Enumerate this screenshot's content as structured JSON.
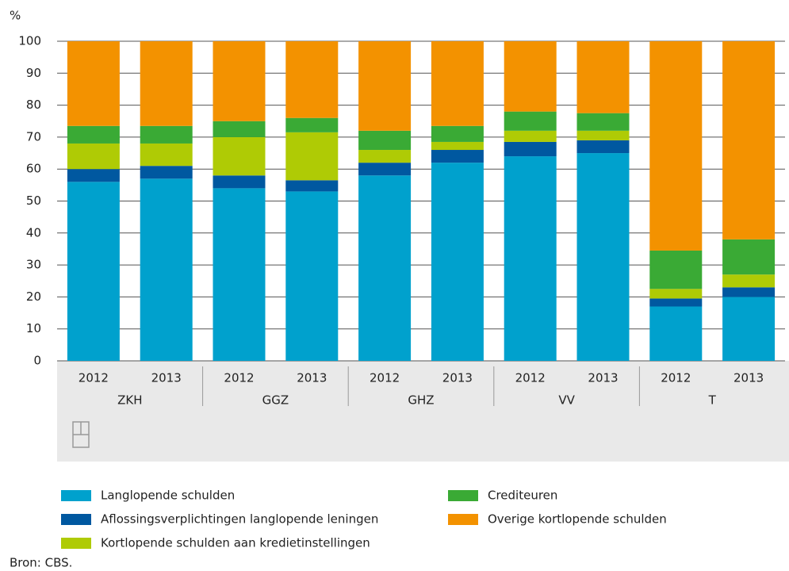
{
  "chart_data": {
    "type": "stacked_bar",
    "y_label": "%",
    "source": "Bron: CBS.",
    "groups": [
      "ZKH",
      "GGZ",
      "GHZ",
      "VV",
      "T"
    ],
    "categories": [
      "2012",
      "2013",
      "2012",
      "2013",
      "2012",
      "2013",
      "2012",
      "2013",
      "2012",
      "2013"
    ],
    "series": [
      {
        "name": "Langlopende schulden",
        "color": "#00a1cd",
        "values": [
          56,
          57,
          54,
          53,
          58,
          62,
          64,
          65,
          17,
          20
        ]
      },
      {
        "name": "Aflossingsverplichtingen langlopende leningen",
        "color": "#0058a0",
        "values": [
          4,
          4,
          4,
          3.5,
          4,
          4,
          4.5,
          4,
          2.5,
          3
        ]
      },
      {
        "name": "Kortlopende schulden aan kredietinstellingen",
        "color": "#afcb05",
        "values": [
          8,
          7,
          12,
          15,
          4,
          2.5,
          3.5,
          3,
          3,
          4
        ]
      },
      {
        "name": "Crediteuren",
        "color": "#3aaa35",
        "values": [
          5.5,
          5.5,
          5,
          4.5,
          6,
          5,
          6,
          5.5,
          12,
          11
        ]
      },
      {
        "name": "Overige kortlopende schulden",
        "color": "#f39200",
        "values": [
          26.5,
          26.5,
          25,
          24,
          28,
          26.5,
          22,
          22.5,
          65.5,
          62
        ]
      }
    ],
    "ylim": [
      0,
      100
    ],
    "yticks": [
      0,
      10,
      20,
      30,
      40,
      50,
      60,
      70,
      80,
      90,
      100
    ],
    "grid": true
  }
}
